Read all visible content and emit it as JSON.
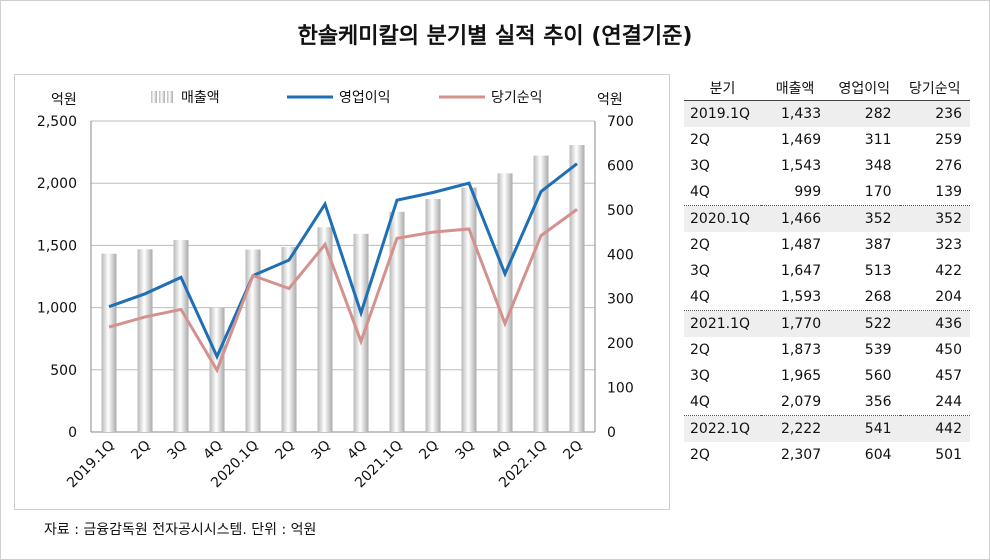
{
  "title": "한솔케미칼의 분기별 실적 추이 (연결기준)",
  "footer": "자료 : 금융감독원 전자공시시스템. 단위 : 억원",
  "colors": {
    "bar": "#e0e0e0",
    "operating": "#1f6fb4",
    "net": "#d3928e",
    "grid": "#bdbdbd"
  },
  "chart_data": {
    "type": "bar",
    "categories": [
      "2019.1Q",
      "2Q",
      "3Q",
      "4Q",
      "2020.1Q",
      "2Q",
      "3Q",
      "4Q",
      "2021.1Q",
      "2Q",
      "3Q",
      "4Q",
      "2022.1Q",
      "2Q"
    ],
    "left_unit": "억원",
    "right_unit": "억원",
    "ylim_left": [
      0,
      2500
    ],
    "yticks_left": [
      0,
      500,
      1000,
      1500,
      2000,
      2500
    ],
    "ytick_labels_left": [
      "0",
      "500",
      "1,000",
      "1,500",
      "2,000",
      "2,500"
    ],
    "ylim_right": [
      0,
      700
    ],
    "yticks_right": [
      0,
      100,
      200,
      300,
      400,
      500,
      600,
      700
    ],
    "ytick_labels_right": [
      "0",
      "100",
      "200",
      "300",
      "400",
      "500",
      "600",
      "700"
    ],
    "grid": true,
    "legend_position": "top",
    "series": [
      {
        "name": "매출액",
        "type": "bar",
        "axis": "left",
        "values": [
          1433,
          1469,
          1543,
          999,
          1466,
          1487,
          1647,
          1593,
          1770,
          1873,
          1965,
          2079,
          2222,
          2307
        ]
      },
      {
        "name": "영업이익",
        "type": "line",
        "axis": "right",
        "values": [
          282,
          311,
          348,
          170,
          352,
          387,
          513,
          268,
          522,
          539,
          560,
          356,
          541,
          604
        ]
      },
      {
        "name": "당기순익",
        "type": "line",
        "axis": "right",
        "values": [
          236,
          259,
          276,
          139,
          352,
          323,
          422,
          204,
          436,
          450,
          457,
          244,
          442,
          501
        ]
      }
    ]
  },
  "table": {
    "headers": [
      "분기",
      "매출액",
      "영업이익",
      "당기순익"
    ],
    "rows": [
      [
        "2019.1Q",
        "1,433",
        "282",
        "236"
      ],
      [
        "2Q",
        "1,469",
        "311",
        "259"
      ],
      [
        "3Q",
        "1,543",
        "348",
        "276"
      ],
      [
        "4Q",
        "999",
        "170",
        "139"
      ],
      [
        "2020.1Q",
        "1,466",
        "352",
        "352"
      ],
      [
        "2Q",
        "1,487",
        "387",
        "323"
      ],
      [
        "3Q",
        "1,647",
        "513",
        "422"
      ],
      [
        "4Q",
        "1,593",
        "268",
        "204"
      ],
      [
        "2021.1Q",
        "1,770",
        "522",
        "436"
      ],
      [
        "2Q",
        "1,873",
        "539",
        "450"
      ],
      [
        "3Q",
        "1,965",
        "560",
        "457"
      ],
      [
        "4Q",
        "2,079",
        "356",
        "244"
      ],
      [
        "2022.1Q",
        "2,222",
        "541",
        "442"
      ],
      [
        "2Q",
        "2,307",
        "604",
        "501"
      ]
    ]
  }
}
